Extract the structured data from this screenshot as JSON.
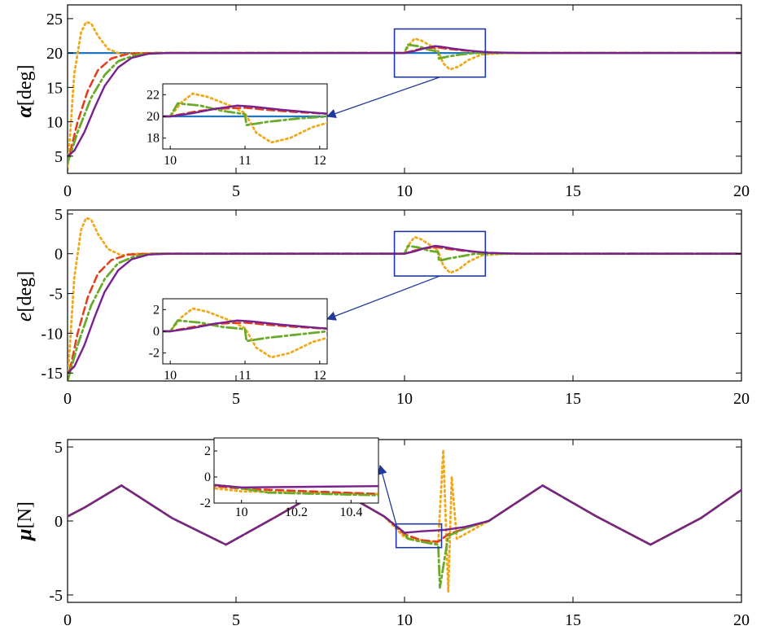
{
  "colors": {
    "reference": "#1f77c4",
    "dashed": "#e0401e",
    "dotted": "#f0a818",
    "dashdot": "#6aaa2a",
    "solid": "#7a1f8e",
    "zoombox": "#1f3a9a",
    "arrow": "#1f3a9a"
  },
  "chart_data": [
    {
      "type": "line",
      "panel": "alpha",
      "ylabel_symbol": "α",
      "ylabel_unit": "[deg]",
      "xlim": [
        0,
        20
      ],
      "ylim": [
        2.5,
        27
      ],
      "xticks": [
        0,
        5,
        10,
        15,
        20
      ],
      "yticks": [
        5,
        10,
        15,
        20,
        25
      ],
      "zoom_box": {
        "x": [
          9.7,
          12.4
        ],
        "y": [
          16.5,
          23.5
        ]
      },
      "inset": {
        "xlim": [
          9.9,
          12.1
        ],
        "ylim": [
          17,
          23
        ],
        "xticks": [
          10,
          11,
          12
        ],
        "yticks": [
          18,
          20,
          22
        ]
      },
      "series": [
        {
          "style": "solid-blue",
          "x": [
            0,
            20
          ],
          "y": [
            20,
            20
          ]
        },
        {
          "style": "dotted",
          "x": [
            0,
            0.2,
            0.4,
            0.55,
            0.7,
            0.9,
            1.2,
            1.6,
            2,
            3,
            10,
            10.15,
            10.3,
            10.5,
            10.8,
            11,
            11.15,
            11.35,
            11.6,
            11.9,
            12.3,
            13,
            20
          ],
          "y": [
            3,
            17,
            23,
            24.5,
            24.3,
            22.5,
            20.6,
            19.8,
            20,
            20,
            20,
            21.3,
            22.1,
            21.8,
            21,
            20.3,
            18.5,
            17.6,
            18,
            19,
            19.8,
            20,
            20
          ]
        },
        {
          "style": "dashed",
          "x": [
            0,
            0.3,
            0.6,
            0.9,
            1.3,
            1.8,
            2.5,
            3,
            10,
            10.3,
            10.6,
            11,
            11.3,
            11.7,
            12.2,
            13,
            20
          ],
          "y": [
            4,
            10,
            14.5,
            17.5,
            19.2,
            19.9,
            20,
            20,
            20,
            20.4,
            20.7,
            20.8,
            20.6,
            20.4,
            20.2,
            20,
            20
          ]
        },
        {
          "style": "dashdot",
          "x": [
            0,
            0.3,
            0.7,
            1.1,
            1.5,
            2,
            2.6,
            3.2,
            10,
            10.1,
            10.4,
            10.7,
            11,
            11.02,
            11.3,
            11.7,
            12.1,
            12.5,
            20
          ],
          "y": [
            4,
            8.5,
            13.5,
            16.8,
            18.8,
            19.7,
            20,
            20,
            20,
            21.2,
            21,
            20.5,
            20.2,
            19.2,
            19.5,
            19.8,
            20,
            20,
            20
          ]
        },
        {
          "style": "solid-purple",
          "x": [
            0,
            0.2,
            0.5,
            0.8,
            1.1,
            1.5,
            1.9,
            2.4,
            3,
            10,
            10.3,
            10.6,
            10.9,
            11.1,
            11.5,
            12,
            12.5,
            13.5,
            20
          ],
          "y": [
            5,
            5.8,
            8.5,
            12,
            15.2,
            17.9,
            19.3,
            19.9,
            20,
            20,
            20.3,
            20.7,
            21,
            20.9,
            20.6,
            20.3,
            20.1,
            20,
            20
          ]
        }
      ]
    },
    {
      "type": "line",
      "panel": "error",
      "ylabel_symbol": "e",
      "ylabel_unit": "[deg]",
      "xlim": [
        0,
        20
      ],
      "ylim": [
        -16,
        5.5
      ],
      "xticks": [
        0,
        5,
        10,
        15,
        20
      ],
      "yticks": [
        5,
        0,
        -5,
        -10,
        -15
      ],
      "zoom_box": {
        "x": [
          9.7,
          12.4
        ],
        "y": [
          -2.8,
          2.8
        ]
      },
      "inset": {
        "xlim": [
          9.9,
          12.1
        ],
        "ylim": [
          -3,
          3
        ],
        "xticks": [
          10,
          11,
          12
        ],
        "yticks": [
          -2,
          0,
          2
        ]
      },
      "series": [
        {
          "style": "dotted",
          "x": [
            0,
            0.2,
            0.4,
            0.55,
            0.7,
            0.9,
            1.2,
            1.6,
            2,
            3,
            10,
            10.15,
            10.3,
            10.5,
            10.8,
            11,
            11.15,
            11.35,
            11.6,
            11.9,
            12.3,
            13,
            20
          ],
          "y": [
            -16,
            -3,
            3,
            4.5,
            4.3,
            2.5,
            0.6,
            -0.2,
            0,
            0,
            0,
            1.3,
            2.1,
            1.8,
            1,
            0.3,
            -1.5,
            -2.4,
            -2,
            -1,
            -0.2,
            0,
            0
          ]
        },
        {
          "style": "dashed",
          "x": [
            0,
            0.3,
            0.6,
            0.9,
            1.3,
            1.8,
            2.5,
            3,
            10,
            10.3,
            10.6,
            11,
            11.3,
            11.7,
            12.2,
            13,
            20
          ],
          "y": [
            -16,
            -10,
            -5.5,
            -2.5,
            -0.8,
            -0.1,
            0,
            0,
            0,
            0.4,
            0.7,
            0.8,
            0.6,
            0.4,
            0.2,
            0,
            0
          ]
        },
        {
          "style": "dashdot",
          "x": [
            0,
            0.3,
            0.7,
            1.1,
            1.5,
            2,
            2.6,
            3.2,
            10,
            10.1,
            10.4,
            10.7,
            11,
            11.02,
            11.3,
            11.7,
            12.1,
            12.5,
            20
          ],
          "y": [
            -16,
            -11.5,
            -6.5,
            -3.2,
            -1.2,
            -0.3,
            0,
            0,
            0,
            1,
            0.8,
            0.4,
            0.2,
            -0.9,
            -0.6,
            -0.3,
            0,
            0,
            0
          ]
        },
        {
          "style": "solid-purple",
          "x": [
            0,
            0.2,
            0.5,
            0.8,
            1.1,
            1.5,
            1.9,
            2.4,
            3,
            10,
            10.3,
            10.6,
            10.9,
            11.1,
            11.5,
            12,
            12.5,
            13.5,
            20
          ],
          "y": [
            -15,
            -14.2,
            -11.5,
            -8,
            -4.8,
            -2.1,
            -0.7,
            -0.1,
            0,
            0,
            0.3,
            0.7,
            1,
            0.9,
            0.6,
            0.3,
            0.1,
            0,
            0
          ]
        }
      ]
    },
    {
      "type": "line",
      "panel": "control",
      "ylabel_symbol": "μ",
      "ylabel_unit": "[N]",
      "xlim": [
        0,
        20
      ],
      "ylim": [
        -5.5,
        5.5
      ],
      "xticks": [
        0,
        5,
        10,
        15,
        20
      ],
      "yticks": [
        5,
        0,
        -5
      ],
      "zoom_box": {
        "x": [
          9.75,
          11.1
        ],
        "y": [
          -1.8,
          -0.2
        ]
      },
      "inset": {
        "xlim": [
          9.9,
          10.5
        ],
        "ylim": [
          -2,
          3
        ],
        "xticks": [
          10,
          10.2,
          10.4
        ],
        "yticks": [
          2,
          0,
          -2
        ]
      },
      "series": [
        {
          "style": "dotted",
          "x": [
            0,
            0.5,
            1.6,
            3.1,
            4.7,
            6.2,
            7.8,
            9.4,
            10,
            10.5,
            11,
            11.15,
            11.3,
            11.4,
            11.55,
            12.5,
            14.1,
            15.7,
            17.3,
            18.8,
            20
          ],
          "y": [
            0.3,
            0.9,
            2.4,
            0.2,
            -1.6,
            0.3,
            2.4,
            0.3,
            -1.1,
            -1.3,
            -1.5,
            4.8,
            -4.8,
            3,
            -1.2,
            0,
            2.4,
            0.3,
            -1.6,
            0.2,
            2.1
          ]
        },
        {
          "style": "dashed",
          "x": [
            0,
            0.5,
            1.6,
            3.1,
            4.7,
            6.2,
            7.8,
            9.4,
            10,
            10.5,
            11,
            11.3,
            11.8,
            12.5,
            14.1,
            15.7,
            17.3,
            18.8,
            20
          ],
          "y": [
            0.3,
            0.9,
            2.4,
            0.2,
            -1.6,
            0.3,
            2.4,
            0.3,
            -0.9,
            -1.3,
            -1.4,
            -0.9,
            -0.5,
            0,
            2.4,
            0.3,
            -1.6,
            0.2,
            2.1
          ]
        },
        {
          "style": "dashdot",
          "x": [
            0,
            0.5,
            1.6,
            3.1,
            4.7,
            6.2,
            7.8,
            9.4,
            9.95,
            10.1,
            10.5,
            11,
            11.05,
            11.3,
            11.8,
            12.5,
            14.1,
            15.7,
            17.3,
            18.8,
            20
          ],
          "y": [
            0.3,
            0.9,
            2.4,
            0.2,
            -1.6,
            0.3,
            2.4,
            0.3,
            -0.7,
            -1.2,
            -1.4,
            -1.6,
            -4.5,
            -1,
            -0.5,
            0,
            2.4,
            0.3,
            -1.6,
            0.2,
            2.1
          ]
        },
        {
          "style": "solid-purple",
          "x": [
            0,
            0.5,
            1.6,
            3.1,
            4.7,
            6.2,
            7.8,
            9.4,
            10,
            10.5,
            11.2,
            11.8,
            12.5,
            14.1,
            15.7,
            17.3,
            18.8,
            20
          ],
          "y": [
            0.3,
            0.9,
            2.4,
            0.2,
            -1.6,
            0.3,
            2.4,
            0.3,
            -0.8,
            -0.7,
            -0.6,
            -0.4,
            0,
            2.4,
            0.3,
            -1.6,
            0.2,
            2.1
          ]
        }
      ]
    }
  ]
}
